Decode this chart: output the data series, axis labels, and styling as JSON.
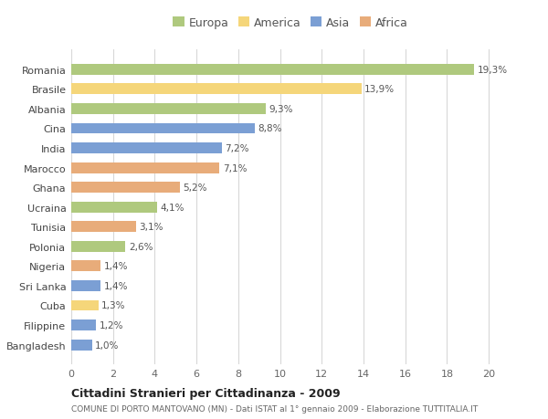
{
  "countries": [
    "Romania",
    "Brasile",
    "Albania",
    "Cina",
    "India",
    "Marocco",
    "Ghana",
    "Ucraina",
    "Tunisia",
    "Polonia",
    "Nigeria",
    "Sri Lanka",
    "Cuba",
    "Filippine",
    "Bangladesh"
  ],
  "values": [
    19.3,
    13.9,
    9.3,
    8.8,
    7.2,
    7.1,
    5.2,
    4.1,
    3.1,
    2.6,
    1.4,
    1.4,
    1.3,
    1.2,
    1.0
  ],
  "labels": [
    "19,3%",
    "13,9%",
    "9,3%",
    "8,8%",
    "7,2%",
    "7,1%",
    "5,2%",
    "4,1%",
    "3,1%",
    "2,6%",
    "1,4%",
    "1,4%",
    "1,3%",
    "1,2%",
    "1,0%"
  ],
  "continents": [
    "Europa",
    "America",
    "Europa",
    "Asia",
    "Asia",
    "Africa",
    "Africa",
    "Europa",
    "Africa",
    "Europa",
    "Africa",
    "Asia",
    "America",
    "Asia",
    "Asia"
  ],
  "colors": {
    "Europa": "#afc97e",
    "America": "#f5d67a",
    "Asia": "#7b9fd4",
    "Africa": "#e8ac7a"
  },
  "legend_order": [
    "Europa",
    "America",
    "Asia",
    "Africa"
  ],
  "xlim": [
    0,
    21
  ],
  "xticks": [
    0,
    2,
    4,
    6,
    8,
    10,
    12,
    14,
    16,
    18,
    20
  ],
  "title": "Cittadini Stranieri per Cittadinanza - 2009",
  "subtitle": "COMUNE DI PORTO MANTOVANO (MN) - Dati ISTAT al 1° gennaio 2009 - Elaborazione TUTTITALIA.IT",
  "bg_color": "#ffffff",
  "grid_color": "#d8d8d8",
  "bar_height": 0.55
}
